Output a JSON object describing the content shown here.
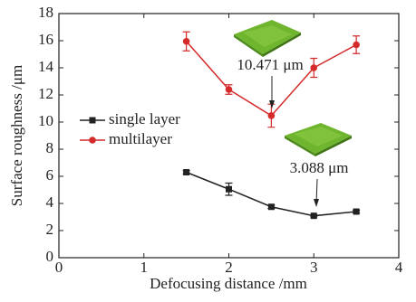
{
  "chart_data": {
    "type": "line",
    "x_label": "Defocusing distance /mm",
    "y_label": "Surface roughness /μm",
    "x": [
      1.5,
      2,
      2.5,
      3,
      3.5
    ],
    "series": [
      {
        "name": "single layer",
        "color": "#222222",
        "marker": "square",
        "values": [
          6.3,
          5.05,
          3.75,
          3.088,
          3.4
        ],
        "errors": [
          0.12,
          0.45,
          0.12,
          0.08,
          0.1
        ]
      },
      {
        "name": "multilayer",
        "color": "#d42a2a",
        "marker": "circle",
        "values": [
          15.95,
          12.4,
          10.471,
          14.0,
          15.7
        ],
        "errors": [
          0.7,
          0.35,
          0.85,
          0.7,
          0.65
        ]
      }
    ],
    "annotations": [
      "10.471 μm",
      "3.088 μm"
    ],
    "xlim": [
      0,
      4
    ],
    "xticks": [
      0,
      1,
      2,
      3,
      4
    ],
    "ylim": [
      0,
      18
    ],
    "yticks": [
      0,
      2,
      4,
      6,
      8,
      10,
      12,
      14,
      16,
      18
    ],
    "legend": "middle-left"
  }
}
